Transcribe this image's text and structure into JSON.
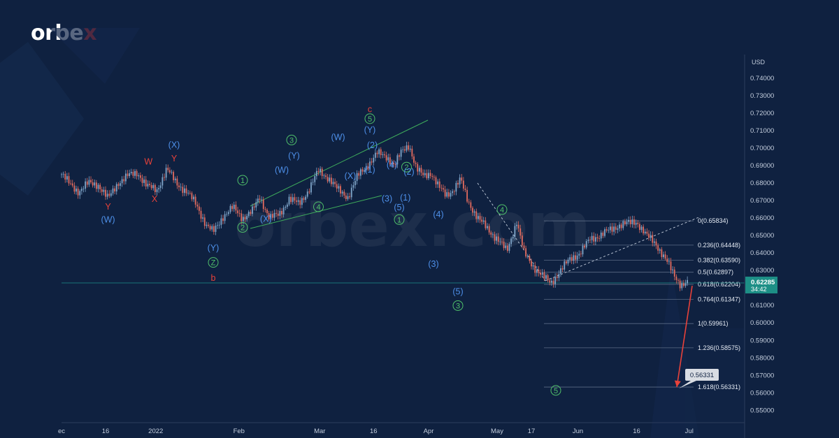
{
  "brand": {
    "pre": "orbe",
    "accent": "x",
    "watermark": "orbex.com"
  },
  "chart_data": {
    "type": "line",
    "instrument_unit": "USD",
    "ylim": [
      0.545,
      0.745
    ],
    "y_ticks": [
      0.55,
      0.56,
      0.57,
      0.58,
      0.59,
      0.6,
      0.61,
      0.62,
      0.63,
      0.64,
      0.65,
      0.66,
      0.67,
      0.68,
      0.69,
      0.7,
      0.71,
      0.72,
      0.73,
      0.74
    ],
    "x_ticks": [
      "ec",
      "16",
      "2022",
      "Feb",
      "Mar",
      "16",
      "Apr",
      "May",
      "17",
      "Jun",
      "16",
      "Jul"
    ],
    "price_path": [
      [
        0,
        0.685
      ],
      [
        6,
        0.68
      ],
      [
        14,
        0.675
      ],
      [
        22,
        0.68
      ],
      [
        30,
        0.679
      ],
      [
        38,
        0.671
      ],
      [
        46,
        0.68
      ],
      [
        54,
        0.684
      ],
      [
        62,
        0.686
      ],
      [
        70,
        0.678
      ],
      [
        78,
        0.676
      ],
      [
        86,
        0.688
      ],
      [
        94,
        0.68
      ],
      [
        102,
        0.675
      ],
      [
        110,
        0.668
      ],
      [
        118,
        0.656
      ],
      [
        124,
        0.652
      ],
      [
        132,
        0.661
      ],
      [
        140,
        0.666
      ],
      [
        148,
        0.66
      ],
      [
        156,
        0.664
      ],
      [
        162,
        0.672
      ],
      [
        170,
        0.66
      ],
      [
        178,
        0.662
      ],
      [
        186,
        0.671
      ],
      [
        194,
        0.668
      ],
      [
        202,
        0.676
      ],
      [
        210,
        0.687
      ],
      [
        218,
        0.683
      ],
      [
        226,
        0.676
      ],
      [
        234,
        0.672
      ],
      [
        242,
        0.684
      ],
      [
        250,
        0.69
      ],
      [
        258,
        0.697
      ],
      [
        266,
        0.695
      ],
      [
        272,
        0.69
      ],
      [
        278,
        0.698
      ],
      [
        284,
        0.702
      ],
      [
        290,
        0.688
      ],
      [
        296,
        0.684
      ],
      [
        302,
        0.686
      ],
      [
        308,
        0.678
      ],
      [
        314,
        0.673
      ],
      [
        320,
        0.676
      ],
      [
        326,
        0.682
      ],
      [
        332,
        0.67
      ],
      [
        340,
        0.66
      ],
      [
        348,
        0.654
      ],
      [
        356,
        0.648
      ],
      [
        364,
        0.641
      ],
      [
        372,
        0.658
      ],
      [
        378,
        0.64
      ],
      [
        386,
        0.632
      ],
      [
        394,
        0.626
      ],
      [
        400,
        0.623
      ],
      [
        408,
        0.63
      ],
      [
        416,
        0.637
      ],
      [
        424,
        0.64
      ],
      [
        432,
        0.648
      ],
      [
        440,
        0.65
      ],
      [
        448,
        0.653
      ],
      [
        456,
        0.656
      ],
      [
        464,
        0.657
      ],
      [
        470,
        0.658
      ],
      [
        478,
        0.65
      ],
      [
        486,
        0.645
      ],
      [
        494,
        0.636
      ],
      [
        500,
        0.628
      ],
      [
        506,
        0.622
      ],
      [
        512,
        0.6228
      ]
    ],
    "projection": [
      [
        512,
        0.6228
      ],
      [
        536,
        0.5633
      ]
    ],
    "current_price": "0.62285",
    "countdown": "34:42",
    "target_box": "0.56331",
    "fib_levels": [
      {
        "label": "0(0.65834)",
        "value": 0.65834
      },
      {
        "label": "0.236(0.64448)",
        "value": 0.64448
      },
      {
        "label": "0.382(0.63590)",
        "value": 0.6359
      },
      {
        "label": "0.5(0.62897)",
        "value": 0.62897
      },
      {
        "label": "0.618(0.62204)",
        "value": 0.62204
      },
      {
        "label": "0.764(0.61347)",
        "value": 0.61347
      },
      {
        "label": "1(0.59961)",
        "value": 0.59961
      },
      {
        "label": "1.236(0.58575)",
        "value": 0.58575
      },
      {
        "label": "1.618(0.56331)",
        "value": 0.56331
      }
    ],
    "wave_labels": [
      {
        "t": "W",
        "c": "red",
        "d": 71,
        "v": 0.6906
      },
      {
        "t": "Y",
        "c": "red",
        "d": 38,
        "v": 0.6648
      },
      {
        "t": "(W)",
        "c": "blue",
        "d": 38,
        "v": 0.6575
      },
      {
        "t": "X",
        "c": "red",
        "d": 76,
        "v": 0.6692
      },
      {
        "t": "(X)",
        "c": "blue",
        "d": 92,
        "v": 0.7002
      },
      {
        "t": "Y",
        "c": "red",
        "d": 92,
        "v": 0.6923
      },
      {
        "t": "(Y)",
        "c": "blue",
        "d": 124,
        "v": 0.6413
      },
      {
        "t": "Z",
        "c": "green",
        "o": 1,
        "d": 124,
        "v": 0.633
      },
      {
        "t": "b",
        "c": "red",
        "d": 124,
        "v": 0.624
      },
      {
        "t": "1",
        "c": "green",
        "o": 1,
        "d": 148,
        "v": 0.68
      },
      {
        "t": "2",
        "c": "green",
        "o": 1,
        "d": 148,
        "v": 0.653
      },
      {
        "t": "(W)",
        "c": "blue",
        "d": 180,
        "v": 0.6858
      },
      {
        "t": "(X)",
        "c": "blue",
        "d": 167,
        "v": 0.6578
      },
      {
        "t": "3",
        "c": "green",
        "o": 1,
        "d": 188,
        "v": 0.703
      },
      {
        "t": "(Y)",
        "c": "blue",
        "d": 190,
        "v": 0.694
      },
      {
        "t": "4",
        "c": "green",
        "o": 1,
        "d": 210,
        "v": 0.6648
      },
      {
        "t": "(W)",
        "c": "blue",
        "d": 226,
        "v": 0.7045
      },
      {
        "t": "(X)",
        "c": "blue",
        "d": 236,
        "v": 0.6823
      },
      {
        "t": "c",
        "c": "red",
        "d": 252,
        "v": 0.7205
      },
      {
        "t": "5",
        "c": "green",
        "o": 1,
        "d": 252,
        "v": 0.7152
      },
      {
        "t": "(Y)",
        "c": "blue",
        "d": 252,
        "v": 0.7088
      },
      {
        "t": "(2)",
        "c": "blue",
        "d": 254,
        "v": 0.7
      },
      {
        "t": "(1)",
        "c": "blue",
        "d": 252,
        "v": 0.686
      },
      {
        "t": "(4)",
        "c": "blue",
        "d": 270,
        "v": 0.6887
      },
      {
        "t": "2",
        "c": "green",
        "o": 1,
        "d": 282,
        "v": 0.6875
      },
      {
        "t": "(2)",
        "c": "blue",
        "d": 284,
        "v": 0.6848
      },
      {
        "t": "(3)",
        "c": "blue",
        "d": 266,
        "v": 0.6695
      },
      {
        "t": "(1)",
        "c": "blue",
        "d": 281,
        "v": 0.67
      },
      {
        "t": "(5)",
        "c": "blue",
        "d": 276,
        "v": 0.6645
      },
      {
        "t": "1",
        "c": "green",
        "o": 1,
        "d": 276,
        "v": 0.6575
      },
      {
        "t": "(4)",
        "c": "blue",
        "d": 308,
        "v": 0.6605
      },
      {
        "t": "(3)",
        "c": "blue",
        "d": 304,
        "v": 0.632
      },
      {
        "t": "(5)",
        "c": "blue",
        "d": 324,
        "v": 0.6162
      },
      {
        "t": "3",
        "c": "green",
        "o": 1,
        "d": 324,
        "v": 0.6083
      },
      {
        "t": "4",
        "c": "green",
        "o": 1,
        "d": 360,
        "v": 0.6632
      },
      {
        "t": "5",
        "c": "green",
        "o": 1,
        "d": 404,
        "v": 0.5598
      }
    ]
  }
}
